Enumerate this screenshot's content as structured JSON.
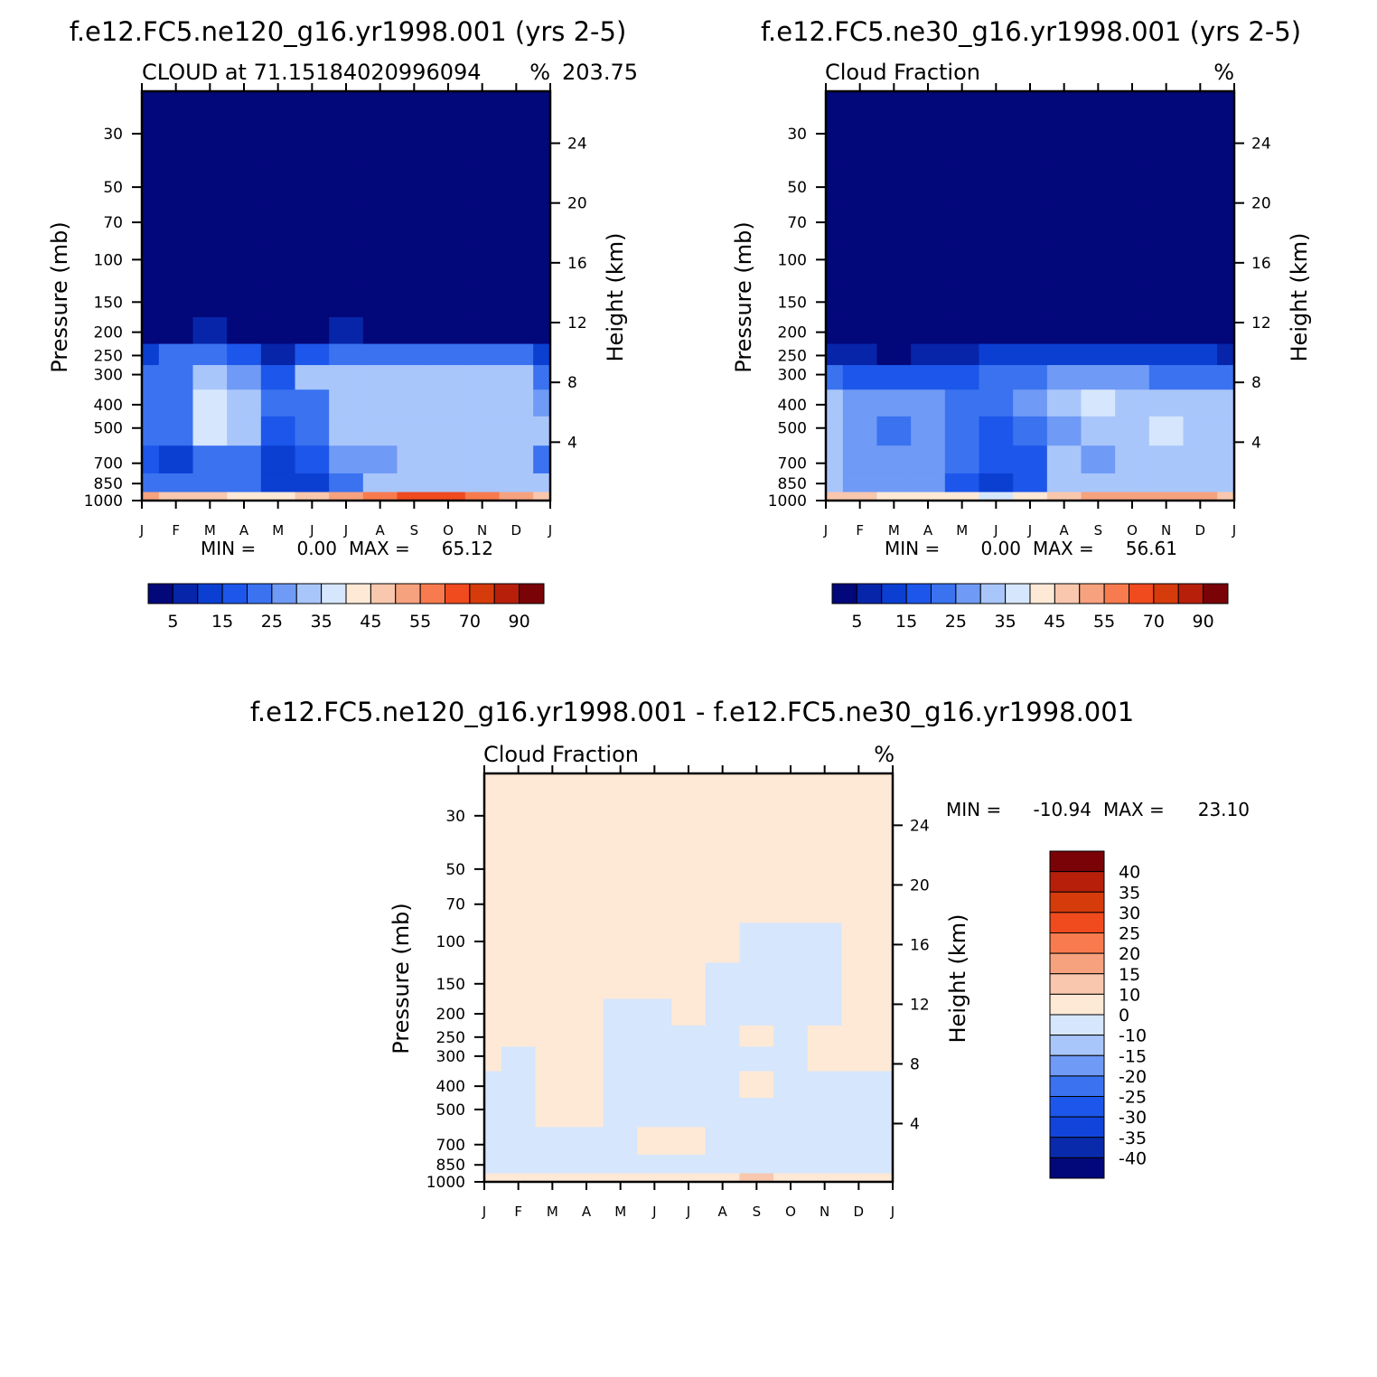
{
  "colors": {
    "abs": [
      "#02077a",
      "#0725a8",
      "#0b3fd2",
      "#1d56ea",
      "#3a72f0",
      "#6f9af5",
      "#a9c6fb",
      "#d6e6fc",
      "#fde9d6",
      "#f8c7ad",
      "#f6a27e",
      "#f77b4e",
      "#f04a1f",
      "#d63b0b",
      "#b71f0b",
      "#7a0307"
    ],
    "diff": [
      "#02077a",
      "#0a2aac",
      "#1244db",
      "#1d56ea",
      "#3a72f0",
      "#6f9af5",
      "#a9c6fb",
      "#d6e6fc",
      "#fde9d6",
      "#f8c7ad",
      "#f6a27e",
      "#f77b4e",
      "#f04a1f",
      "#d63b0b",
      "#b71f0b",
      "#7a0307"
    ]
  },
  "chart_data": [
    {
      "type": "heatmap",
      "title": "f.e12.FC5.ne120_g16.yr1998.001 (yrs 2-5)",
      "subtitle_left": "CLOUD at 71.15184020996094",
      "subtitle_mid": "203.75",
      "subtitle_right": "%",
      "ylabel": "Pressure (mb)",
      "ylabel_right": "Height (km)",
      "x_ticks": [
        "J",
        "F",
        "M",
        "A",
        "M",
        "J",
        "J",
        "A",
        "S",
        "O",
        "N",
        "D",
        "J"
      ],
      "y_ticks": [
        "30",
        "50",
        "70",
        "100",
        "150",
        "200",
        "250",
        "300",
        "400",
        "500",
        "700",
        "850",
        "1000"
      ],
      "y_right_ticks": [
        "24",
        "20",
        "16",
        "12",
        "8",
        "4"
      ],
      "stats": {
        "min_label": "MIN =",
        "min": "0.00",
        "max_label": "MAX =",
        "max": "65.12"
      },
      "colorbar_labels": [
        "5",
        "15",
        "25",
        "35",
        "45",
        "55",
        "70",
        "90"
      ],
      "levels": [
        0,
        5,
        10,
        15,
        20,
        25,
        30,
        35,
        40,
        45,
        50,
        55,
        60,
        70,
        80,
        90
      ],
      "pressure": [
        30,
        50,
        70,
        100,
        150,
        200,
        250,
        300,
        400,
        500,
        700,
        850,
        1000
      ],
      "z_by_month": [
        [
          0,
          0,
          0,
          0,
          0,
          2,
          14,
          22,
          24,
          24,
          16,
          22,
          50
        ],
        [
          0,
          0,
          0,
          0,
          0,
          3,
          20,
          24,
          22,
          20,
          14,
          21,
          48
        ],
        [
          0,
          0,
          0,
          0,
          0,
          6,
          24,
          32,
          36,
          36,
          22,
          21,
          45
        ],
        [
          0,
          0,
          0,
          0,
          0,
          4,
          18,
          26,
          30,
          30,
          22,
          20,
          44
        ],
        [
          0,
          0,
          0,
          0,
          0,
          1,
          9,
          19,
          20,
          17,
          14,
          14,
          42
        ],
        [
          0,
          0,
          0,
          0,
          0,
          4,
          18,
          30,
          22,
          22,
          19,
          14,
          45
        ],
        [
          0,
          0,
          0,
          0,
          0,
          5,
          22,
          30,
          30,
          30,
          26,
          24,
          50
        ],
        [
          0,
          0,
          0,
          0,
          0,
          3,
          20,
          32,
          32,
          30,
          29,
          32,
          55
        ],
        [
          0,
          0,
          0,
          0,
          0,
          2,
          20,
          30,
          32,
          30,
          30,
          32,
          63
        ],
        [
          0,
          0,
          0,
          0,
          0,
          1,
          20,
          32,
          32,
          31,
          31,
          33,
          60
        ],
        [
          0,
          0,
          0,
          0,
          0,
          2,
          21,
          31,
          32,
          33,
          32,
          33,
          55
        ],
        [
          0,
          0,
          0,
          0,
          0,
          4,
          22,
          30,
          32,
          33,
          30,
          32,
          50
        ],
        [
          0,
          0,
          0,
          0,
          0,
          2,
          14,
          22,
          26,
          30,
          24,
          30,
          48
        ]
      ]
    },
    {
      "type": "heatmap",
      "title": "f.e12.FC5.ne30_g16.yr1998.001 (yrs 2-5)",
      "subtitle_left": "Cloud Fraction",
      "subtitle_right": "%",
      "ylabel": "Pressure (mb)",
      "ylabel_right": "Height (km)",
      "x_ticks": [
        "J",
        "F",
        "M",
        "A",
        "M",
        "J",
        "J",
        "A",
        "S",
        "O",
        "N",
        "D",
        "J"
      ],
      "y_ticks": [
        "30",
        "50",
        "70",
        "100",
        "150",
        "200",
        "250",
        "300",
        "400",
        "500",
        "700",
        "850",
        "1000"
      ],
      "y_right_ticks": [
        "24",
        "20",
        "16",
        "12",
        "8",
        "4"
      ],
      "stats": {
        "min_label": "MIN =",
        "min": "0.00",
        "max_label": "MAX =",
        "max": "56.61"
      },
      "colorbar_labels": [
        "5",
        "15",
        "25",
        "35",
        "45",
        "55",
        "70",
        "90"
      ],
      "levels": [
        0,
        5,
        10,
        15,
        20,
        25,
        30,
        35,
        40,
        45,
        50,
        55,
        60,
        70,
        80,
        90
      ],
      "pressure": [
        30,
        50,
        70,
        100,
        150,
        200,
        250,
        300,
        400,
        500,
        700,
        850,
        1000
      ],
      "z_by_month": [
        [
          0,
          0,
          0,
          0,
          0,
          0,
          8,
          20,
          30,
          30,
          31,
          30,
          48
        ],
        [
          0,
          0,
          0,
          0,
          0,
          0,
          7,
          18,
          28,
          25,
          26,
          28,
          46
        ],
        [
          0,
          0,
          0,
          0,
          0,
          0,
          4,
          16,
          26,
          24,
          26,
          25,
          44
        ],
        [
          0,
          0,
          0,
          0,
          0,
          0,
          6,
          17,
          28,
          26,
          26,
          25,
          44
        ],
        [
          0,
          0,
          0,
          0,
          0,
          0,
          8,
          18,
          24,
          22,
          20,
          17,
          40
        ],
        [
          0,
          0,
          0,
          0,
          0,
          0,
          10,
          20,
          22,
          18,
          15,
          12,
          38
        ],
        [
          0,
          0,
          0,
          0,
          0,
          1,
          12,
          22,
          26,
          20,
          19,
          18,
          42
        ],
        [
          0,
          0,
          0,
          0,
          0,
          1,
          14,
          26,
          33,
          28,
          30,
          32,
          46
        ],
        [
          0,
          0,
          0,
          0,
          0,
          0,
          12,
          26,
          36,
          30,
          28,
          32,
          50
        ],
        [
          0,
          0,
          0,
          0,
          0,
          0,
          12,
          26,
          34,
          32,
          30,
          32,
          54
        ],
        [
          0,
          0,
          0,
          0,
          0,
          0,
          12,
          24,
          34,
          36,
          32,
          31,
          52
        ],
        [
          0,
          0,
          0,
          0,
          0,
          0,
          10,
          22,
          32,
          32,
          30,
          32,
          50
        ],
        [
          0,
          0,
          0,
          0,
          0,
          0,
          8,
          20,
          30,
          30,
          31,
          30,
          48
        ]
      ]
    },
    {
      "type": "heatmap",
      "title": "f.e12.FC5.ne120_g16.yr1998.001 - f.e12.FC5.ne30_g16.yr1998.001",
      "subtitle_left": "Cloud Fraction",
      "subtitle_right": "%",
      "ylabel": "Pressure (mb)",
      "ylabel_right": "Height (km)",
      "x_ticks": [
        "J",
        "F",
        "M",
        "A",
        "M",
        "J",
        "J",
        "A",
        "S",
        "O",
        "N",
        "D",
        "J"
      ],
      "y_ticks": [
        "30",
        "50",
        "70",
        "100",
        "150",
        "200",
        "250",
        "300",
        "400",
        "500",
        "700",
        "850",
        "1000"
      ],
      "y_right_ticks": [
        "24",
        "20",
        "16",
        "12",
        "8",
        "4"
      ],
      "stats": {
        "min_label": "MIN =",
        "min": "-10.94",
        "max_label": "MAX =",
        "max": "23.10"
      },
      "colorbar_labels": [
        "40",
        "35",
        "30",
        "25",
        "20",
        "15",
        "10",
        "0",
        "-10",
        "-15",
        "-20",
        "-25",
        "-30",
        "-35",
        "-40"
      ],
      "levels": [
        -45,
        -40,
        -35,
        -30,
        -25,
        -20,
        -15,
        -10,
        0,
        10,
        15,
        20,
        25,
        30,
        35,
        40
      ],
      "pressure": [
        30,
        50,
        70,
        100,
        150,
        200,
        250,
        300,
        400,
        500,
        700,
        850,
        1000
      ],
      "z_by_month": [
        [
          0.5,
          0.5,
          0.5,
          0.5,
          0.5,
          0.5,
          0.5,
          0.5,
          -2,
          -2,
          -2,
          -2,
          5
        ],
        [
          0.5,
          0.5,
          0.5,
          0.5,
          0.5,
          0.5,
          0.5,
          -1,
          -3,
          -3,
          -3,
          -2,
          4
        ],
        [
          0.5,
          0.5,
          0.5,
          0.5,
          0.5,
          0.5,
          0.5,
          0.5,
          2,
          1,
          -2,
          -3,
          4
        ],
        [
          0.5,
          0.5,
          0.5,
          0.5,
          0.5,
          0.5,
          0.5,
          0.5,
          0.5,
          0.5,
          -1,
          -2,
          4
        ],
        [
          0.5,
          0.5,
          0.5,
          0.5,
          0.5,
          -1,
          -3,
          -4,
          -6,
          -5,
          -4,
          -3,
          3
        ],
        [
          0.5,
          0.5,
          0.5,
          0.5,
          0.5,
          -1,
          -2,
          -3,
          -3,
          -2,
          2,
          -2,
          3
        ],
        [
          0.5,
          0.5,
          0.5,
          0.5,
          0.5,
          0.5,
          -2,
          -2,
          -3,
          -2,
          3,
          -2,
          4
        ],
        [
          0.5,
          0.5,
          0.5,
          0.5,
          -1,
          -2,
          -2,
          -3,
          -2,
          -2,
          -2,
          -2,
          6
        ],
        [
          0.5,
          0.5,
          0.5,
          -1,
          -2,
          -3,
          0.5,
          -1,
          2,
          -2,
          -2,
          -2,
          12
        ],
        [
          0.5,
          0.5,
          0.5,
          -2,
          -2,
          -2,
          -2,
          -2,
          -2,
          -2,
          -2,
          -2,
          4
        ],
        [
          0.5,
          0.5,
          0.5,
          -2,
          -2,
          -2,
          0.5,
          0.5,
          -2,
          -2,
          -2,
          -2,
          4
        ],
        [
          0.5,
          0.5,
          0.5,
          0.5,
          0.5,
          0.5,
          0.5,
          0.5,
          -1,
          -2,
          -2,
          -2,
          3
        ],
        [
          0.5,
          0.5,
          0.5,
          0.5,
          0.5,
          0.5,
          0.5,
          0.5,
          -1,
          -2,
          -2,
          -2,
          4
        ]
      ]
    }
  ]
}
